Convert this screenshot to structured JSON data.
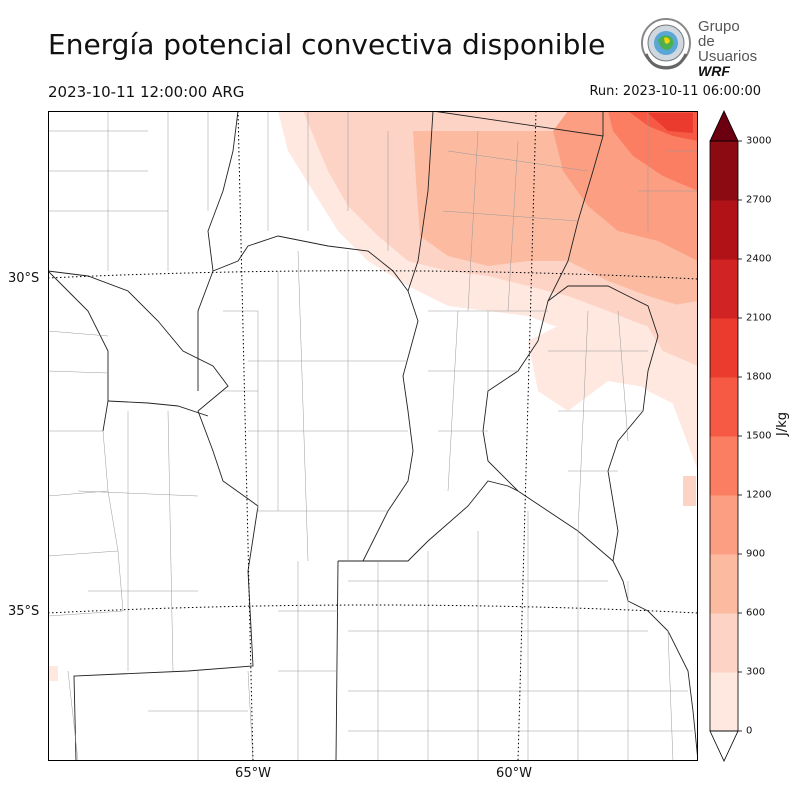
{
  "title": "Energía potencial convectiva disponible",
  "valid_time": "2023-10-11 12:00:00 ARG",
  "run_time": "Run: 2023-10-11 06:00:00",
  "logo": {
    "line1": "Grupo de",
    "line2": "Usuarios",
    "line3": "WRF"
  },
  "map": {
    "lat_labels": [
      "30°S",
      "35°S"
    ],
    "lon_labels": [
      "65°W",
      "60°W"
    ]
  },
  "colorbar": {
    "unit": "J/kg",
    "ticks": [
      "0",
      "300",
      "600",
      "900",
      "1200",
      "1500",
      "1800",
      "2100",
      "2400",
      "2700",
      "3000"
    ],
    "colors": [
      "#fee8e0",
      "#fdd3c5",
      "#fcbba1",
      "#fc9e82",
      "#fb7e62",
      "#f65a44",
      "#ea3b2e",
      "#d12323",
      "#b11218",
      "#8c0a12",
      "#6b0010"
    ]
  }
}
